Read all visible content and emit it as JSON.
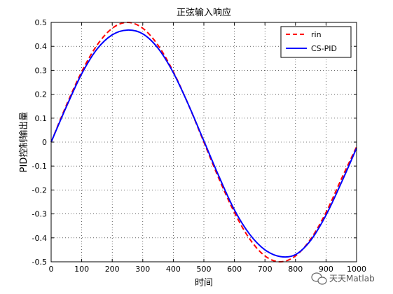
{
  "chart_data": {
    "type": "line",
    "title": "正弦输入响应",
    "xlabel": "时间",
    "ylabel": "PID控制输出量",
    "xlim": [
      0,
      1000
    ],
    "ylim": [
      -0.5,
      0.5
    ],
    "xticks": [
      0,
      100,
      200,
      300,
      400,
      500,
      600,
      700,
      800,
      900,
      1000
    ],
    "yticks": [
      -0.5,
      -0.4,
      -0.3,
      -0.2,
      -0.1,
      0,
      0.1,
      0.2,
      0.3,
      0.4,
      0.5
    ],
    "xtick_labels": [
      "0",
      "100",
      "200",
      "300",
      "400",
      "500",
      "600",
      "700",
      "800",
      "900",
      "1000"
    ],
    "ytick_labels": [
      "-0.5",
      "-0.4",
      "-0.3",
      "-0.2",
      "-0.1",
      "0",
      "0.1",
      "0.2",
      "0.3",
      "0.4",
      "0.5"
    ],
    "grid": true,
    "legend_position": "top-right",
    "series": [
      {
        "name": "rin",
        "style": "dashed",
        "color": "#ff0000",
        "x": [
          0,
          50,
          100,
          150,
          200,
          250,
          300,
          350,
          400,
          450,
          500,
          550,
          600,
          650,
          700,
          750,
          800,
          850,
          900,
          950,
          1000
        ],
        "y": [
          0,
          0.1545,
          0.2939,
          0.4045,
          0.4755,
          0.5,
          0.4755,
          0.4045,
          0.2939,
          0.1545,
          0,
          -0.1545,
          -0.2939,
          -0.4045,
          -0.4755,
          -0.5,
          -0.4755,
          -0.4045,
          -0.2939,
          -0.1545,
          -0.02
        ]
      },
      {
        "name": "CS-PID",
        "style": "solid",
        "color": "#0000ff",
        "x": [
          0,
          50,
          100,
          150,
          200,
          250,
          300,
          350,
          400,
          450,
          500,
          550,
          600,
          650,
          700,
          750,
          800,
          850,
          900,
          950,
          1000
        ],
        "y": [
          0,
          0.148,
          0.285,
          0.388,
          0.448,
          0.468,
          0.452,
          0.392,
          0.29,
          0.155,
          0.005,
          -0.145,
          -0.283,
          -0.385,
          -0.45,
          -0.478,
          -0.47,
          -0.41,
          -0.305,
          -0.17,
          -0.025
        ]
      }
    ]
  },
  "watermark": {
    "text": "天天Matlab",
    "icon": "wechat-icon"
  }
}
